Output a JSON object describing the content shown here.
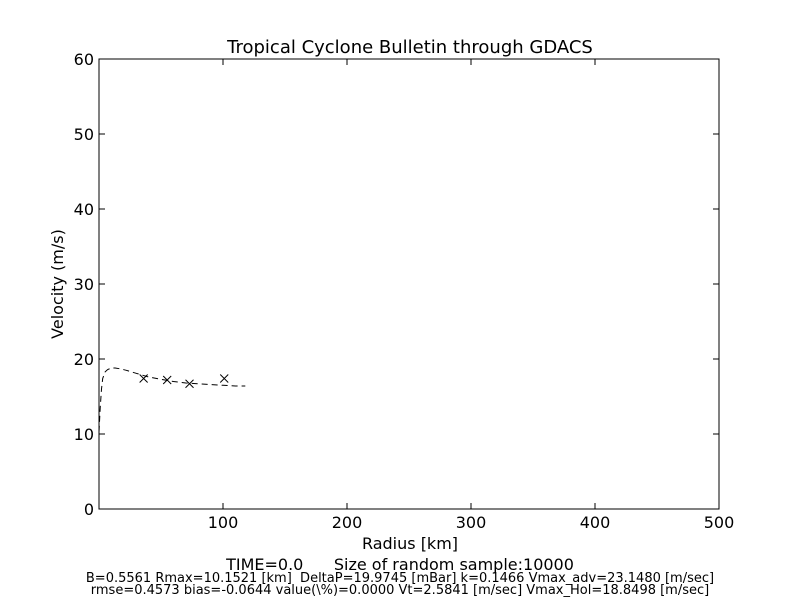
{
  "chart_data": {
    "type": "line",
    "title": "Tropical Cyclone Bulletin through GDACS",
    "xlabel": "Radius [km]",
    "ylabel": "Velocity (m/s)",
    "xlim": [
      0,
      500
    ],
    "ylim": [
      0,
      60
    ],
    "x_ticks": [
      "100",
      "200",
      "300",
      "400",
      "500"
    ],
    "y_ticks": [
      "0",
      "10",
      "20",
      "30",
      "40",
      "50",
      "60"
    ],
    "grid": false,
    "series": [
      {
        "style": "dashed-line",
        "x": [
          0,
          1,
          2,
          3,
          5,
          7,
          10,
          13,
          17,
          22,
          30,
          40,
          50,
          60,
          70,
          80,
          90,
          100,
          110,
          118
        ],
        "y": [
          10.3,
          13.5,
          16.0,
          17.4,
          18.3,
          18.6,
          18.8,
          18.8,
          18.7,
          18.5,
          18.1,
          17.6,
          17.3,
          17.0,
          16.8,
          16.7,
          16.6,
          16.5,
          16.4,
          16.4
        ]
      },
      {
        "style": "x-markers",
        "x": [
          36,
          55,
          73,
          101
        ],
        "y": [
          17.4,
          17.2,
          16.7,
          17.4
        ]
      }
    ]
  },
  "footer": {
    "line1": "TIME=0.0      Size of random sample:10000",
    "line2": "B=0.5561 Rmax=10.1521 [km]  DeltaP=19.9745 [mBar] k=0.1466 Vmax_adv=23.1480 [m/sec]",
    "line3": "rmse=0.4573 bias=-0.0644 value(\\%)=0.0000 Vt=2.5841 [m/sec] Vmax_Hol=18.8498 [m/sec]"
  }
}
